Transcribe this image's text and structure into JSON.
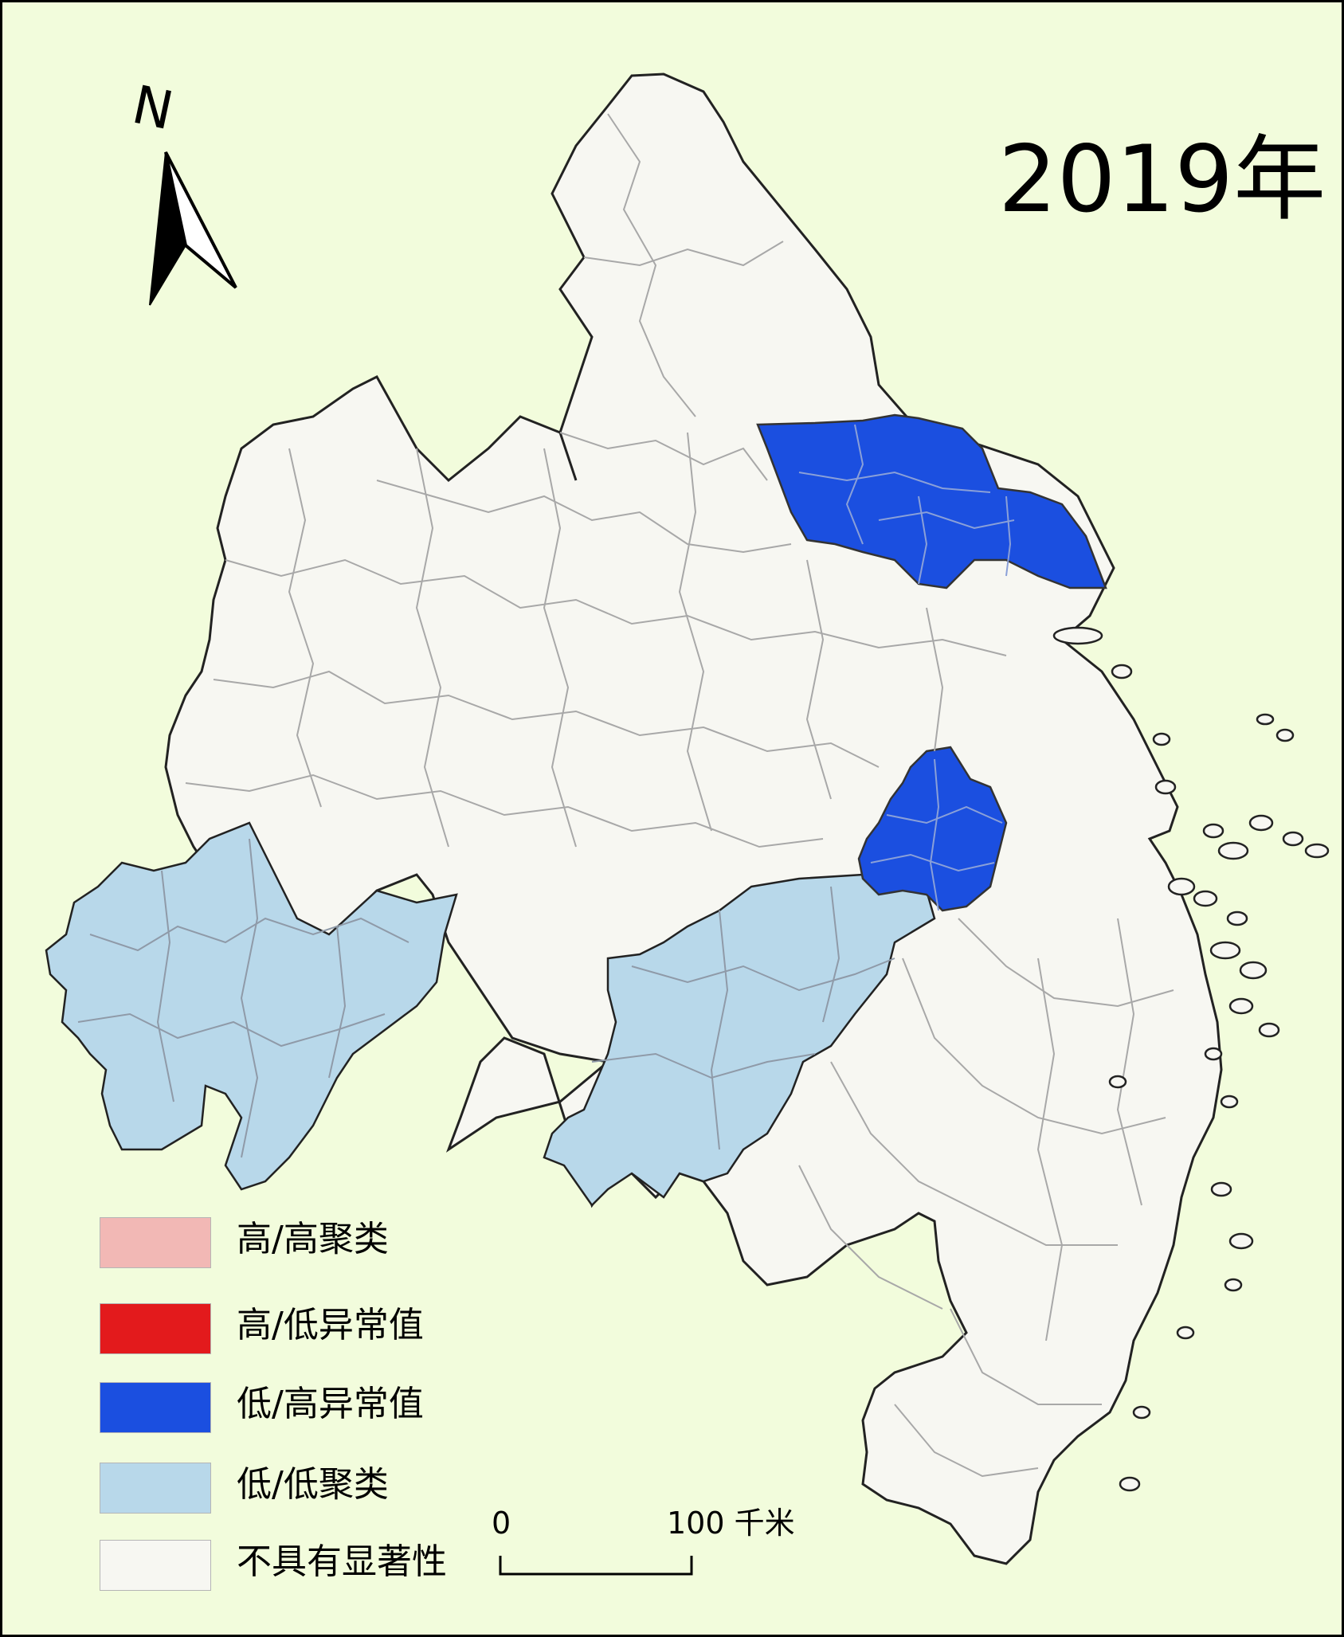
{
  "title": "2019年",
  "north_arrow": {
    "label": "N",
    "icon": "north-arrow-icon"
  },
  "legend": [
    {
      "label": "高/高聚类",
      "color": "#f2b8b5"
    },
    {
      "label": "高/低异常值",
      "color": "#e31a1c"
    },
    {
      "label": "低/高异常值",
      "color": "#1b4fe0"
    },
    {
      "label": "低/低聚类",
      "color": "#b8d8ea"
    },
    {
      "label": "不具有显著性",
      "color": "#f7f7f2"
    }
  ],
  "scale_bar": {
    "start": "0",
    "end": "100 千米"
  },
  "colors": {
    "background": "#f2fcdc",
    "not_significant": "#f7f7f2",
    "low_high": "#1b4fe0",
    "low_low": "#b8d8ea",
    "boundary": "#a0a0a0",
    "outline": "#222222"
  }
}
